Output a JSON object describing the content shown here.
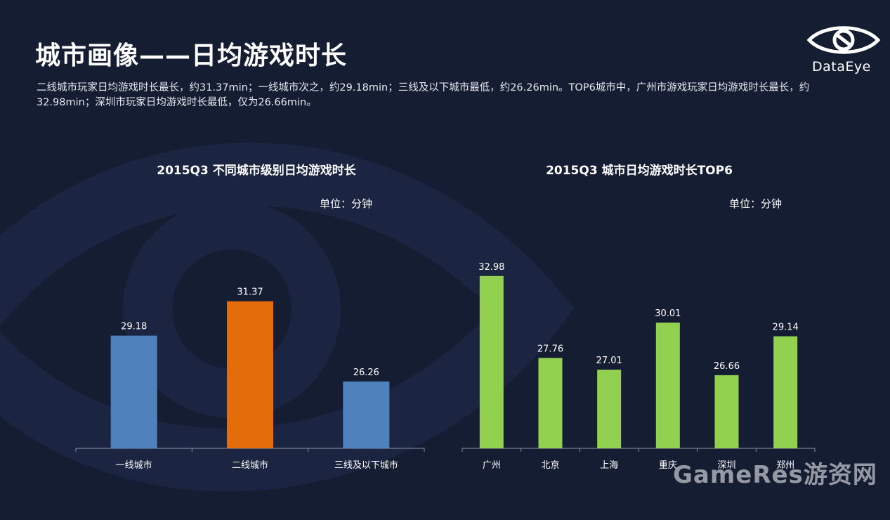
{
  "title": "城市画像——日均游戏时长",
  "logo_text": "DataEye",
  "description": "二线城市玩家日均游戏时长最长，约31.37min；一线城市次之，约29.18min；三线及以下城市最低，约26.26min。TOP6城市中，广州市游戏玩家日均游戏时长最长，约32.98min；深圳市玩家日均游戏时长最低，仅为26.66min。",
  "watermark": "GameRes游资网",
  "colors": {
    "background": "#151d33",
    "blue": "#4f81bd",
    "orange": "#e46c0a",
    "green": "#92d050",
    "axis": "#8a93a6"
  },
  "chart_data": [
    {
      "type": "bar",
      "title": "2015Q3  不同城市级别日均游戏时长",
      "unit": "单位：分钟",
      "categories": [
        "一线城市",
        "二线城市",
        "三线及以下城市"
      ],
      "values": [
        29.18,
        31.37,
        26.26
      ],
      "value_labels": [
        "29.18",
        "31.37",
        "26.26"
      ],
      "bar_colors": [
        "#4f81bd",
        "#e46c0a",
        "#4f81bd"
      ],
      "ylim": [
        22,
        34
      ]
    },
    {
      "type": "bar",
      "title": "2015Q3  城市日均游戏时长TOP6",
      "unit": "单位：分钟",
      "categories": [
        "广州",
        "北京",
        "上海",
        "重庆",
        "深圳",
        "郑州"
      ],
      "values": [
        32.98,
        27.76,
        27.01,
        30.01,
        26.66,
        29.14
      ],
      "value_labels": [
        "32.98",
        "27.76",
        "27.01",
        "30.01",
        "26.66",
        "29.14"
      ],
      "bar_colors": [
        "#92d050",
        "#92d050",
        "#92d050",
        "#92d050",
        "#92d050",
        "#92d050"
      ],
      "ylim": [
        22,
        34
      ]
    }
  ]
}
